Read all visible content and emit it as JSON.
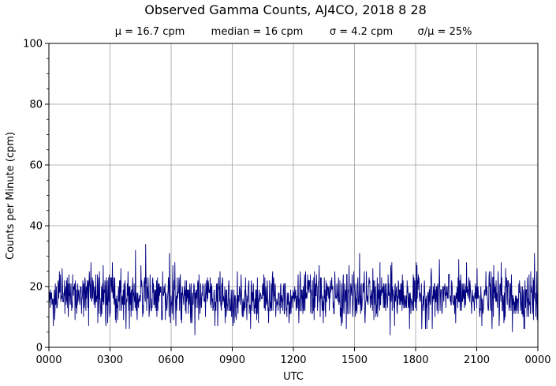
{
  "chart_data": {
    "type": "line",
    "title": "Observed Gamma Counts, AJ4CO, 2018 8 28",
    "subtitle": {
      "mean": "μ = 16.7 cpm",
      "median": "median = 16 cpm",
      "sigma": "σ = 4.2 cpm",
      "ratio": "σ/μ = 25%"
    },
    "xlabel": "UTC",
    "ylabel": "Counts per Minute (cpm)",
    "ylim": [
      0,
      100
    ],
    "xlim_minutes": [
      0,
      1440
    ],
    "x_tick_labels": [
      "0000",
      "0300",
      "0600",
      "0900",
      "1200",
      "1500",
      "1800",
      "2100",
      "0000"
    ],
    "y_tick_labels": [
      "0",
      "20",
      "40",
      "60",
      "80",
      "100"
    ],
    "grid": true,
    "series": [
      {
        "color": "#00007f",
        "mean": 16.7,
        "median": 16,
        "sigma": 4.2,
        "approximate_extremes": [
          {
            "time": "0445",
            "cpm": 34
          },
          {
            "time": "0415",
            "cpm": 32
          },
          {
            "time": "1515",
            "cpm": 31
          },
          {
            "time": "0555",
            "cpm": 31
          },
          {
            "time": "2350",
            "cpm": 31
          },
          {
            "time": "0710",
            "cpm": 4
          },
          {
            "time": "1645",
            "cpm": 4
          },
          {
            "time": "2245",
            "cpm": 5
          }
        ]
      }
    ]
  }
}
